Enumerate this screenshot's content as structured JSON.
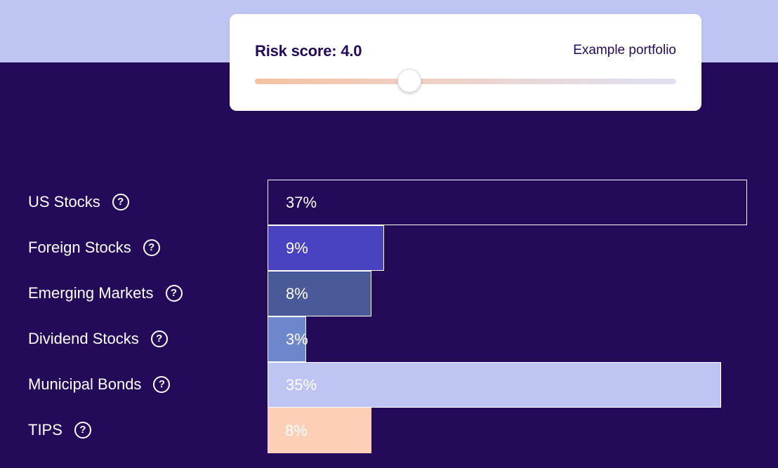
{
  "risk_card": {
    "title": "Risk score: 4.0",
    "portfolio_label": "Example portfolio",
    "slider_value": 4.0,
    "slider_fraction": 0.367
  },
  "help_icon_glyph": "?",
  "chart_data": {
    "type": "bar",
    "categories": [
      "US Stocks",
      "Foreign Stocks",
      "Emerging Markets",
      "Dividend Stocks",
      "Municipal Bonds",
      "TIPS"
    ],
    "values": [
      37,
      9,
      8,
      3,
      35,
      8
    ],
    "value_labels": [
      "37%",
      "9%",
      "8%",
      "3%",
      "35%",
      "8%"
    ],
    "colors": [
      "#240b59",
      "#4a43c1",
      "#4a5997",
      "#6e86cc",
      "#bfc5f3",
      "#fecfb7"
    ],
    "outlined": [
      true,
      true,
      true,
      true,
      true,
      false
    ],
    "orientation": "horizontal",
    "xlim": [
      0,
      37
    ]
  }
}
